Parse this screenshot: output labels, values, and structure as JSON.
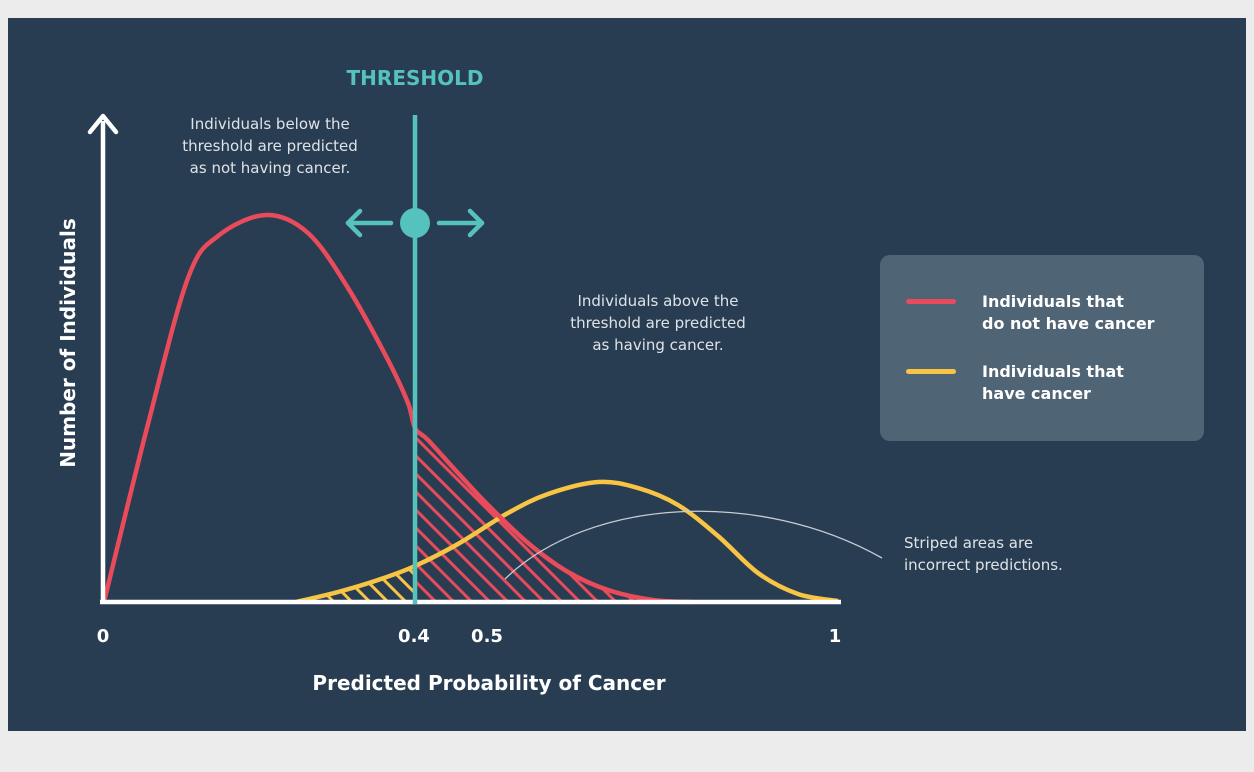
{
  "threshold_label": "THRESHOLD",
  "y_axis_label": "Number of Individuals",
  "x_axis_label": "Predicted Probability of Cancer",
  "x_ticks": [
    "0",
    "0.4",
    "0.5",
    "1"
  ],
  "annotations": {
    "below": "Individuals below the\nthreshold are predicted\nas not having cancer.",
    "above": "Individuals above the\nthreshold are predicted\nas having cancer.",
    "striped": "Striped areas are\nincorrect predictions."
  },
  "legend": {
    "items": [
      {
        "label": "Individuals that\ndo not have cancer",
        "color": "#ea4b5b"
      },
      {
        "label": "Individuals that\nhave cancer",
        "color": "#f7c444"
      }
    ]
  },
  "colors": {
    "background": "#283d52",
    "threshold": "#56c2be",
    "axis": "#ffffff",
    "no_cancer": "#ea4b5b",
    "cancer": "#f7c444"
  },
  "threshold_value": 0.4
}
